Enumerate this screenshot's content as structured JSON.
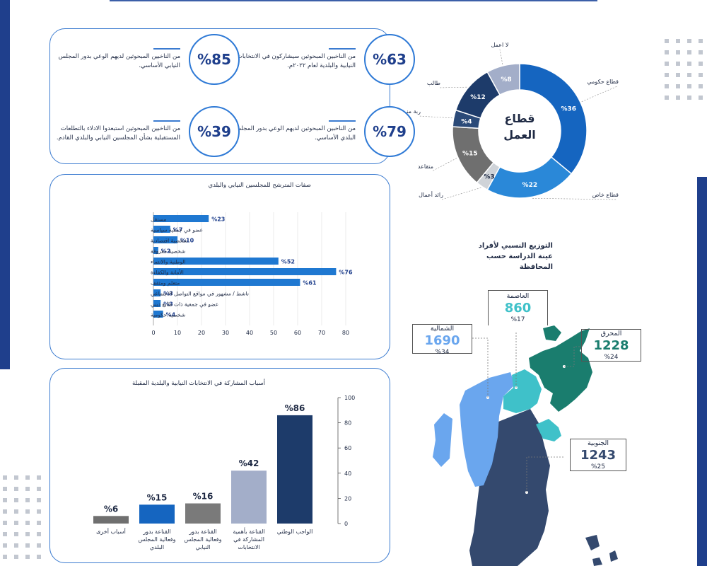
{
  "stats": [
    {
      "value": "%63",
      "text": "من الناخبين المبحوثين سيشاركون في الانتخابات النيابية والبلدية لعام ٢٠٢٢م."
    },
    {
      "value": "%85",
      "text": "من الناخبين المبحوثين لديهم الوعي بدور المجلس النيابي الأساسي."
    },
    {
      "value": "%79",
      "text": "من الناخبين المبحوثين لديهم الوعي بدور المجلس البلدي الأساسي."
    },
    {
      "value": "%39",
      "text": "من الناخبين المبحوثين استبعدوا الادلاء بالتطلعات المستقبلية بشأن المجلسين النيابي والبلدي القادم."
    }
  ],
  "donut": {
    "center_title": "قطاع العمل",
    "colors": {
      "gov": "#1565c0",
      "private": "#2a88d8",
      "business": "#cfd3d8",
      "retired": "#6f6f6f",
      "housewife": "#2b4a78",
      "student": "#1d3b6a",
      "unemployed": "#a3aec9"
    }
  },
  "map": {
    "title": "التوزيع النسبي لأفراد عينة الدراسة حسب المحافظة",
    "regions": [
      {
        "key": "capital",
        "name": "العاصمة",
        "value": "860",
        "pct": "%17",
        "color": "#3fc1c9"
      },
      {
        "key": "muharraq",
        "name": "المحرق",
        "value": "1228",
        "pct": "%24",
        "color": "#1a7d6e"
      },
      {
        "key": "northern",
        "name": "الشمالية",
        "value": "1690",
        "pct": "%34",
        "color": "#6aa6ee"
      },
      {
        "key": "southern",
        "name": "الجنوبية",
        "value": "1243",
        "pct": "%25",
        "color": "#34496e"
      }
    ]
  },
  "chart_data": [
    {
      "type": "pie",
      "title": "قطاع العمل",
      "categories": [
        "قطاع حكومي",
        "قطاع خاص",
        "رائد أعمال",
        "متقاعد",
        "ربة منزل",
        "طالب",
        "لا أعمل"
      ],
      "values": [
        36,
        22,
        3,
        15,
        4,
        12,
        8
      ],
      "value_labels": [
        "%36",
        "%22",
        "%3",
        "%15",
        "%4",
        "%12",
        "%8"
      ]
    },
    {
      "type": "bar",
      "orientation": "horizontal",
      "title": "صفات المترشح للمجلسين النيابي والبلدي",
      "categories": [
        "مستقل",
        "عضو في جمعية سياسية",
        "شخصية اقتصادية",
        "شخصية معروفة",
        "الوطنية والانتماء",
        "الأمانة والكفاءة",
        "متعلم ومثقف",
        "ناشط / مشهور في مواقع التواصل الاجتماعي",
        "عضو في جمعية ذات طابع ديني",
        "شخصية حكومية"
      ],
      "values": [
        23,
        7,
        10,
        2,
        52,
        76,
        61,
        3,
        3,
        4
      ],
      "value_labels": [
        "%23",
        "%7",
        "%10",
        "%2",
        "%52",
        "%76",
        "%61",
        "%3",
        "%3",
        "%4"
      ],
      "xlim": [
        0,
        80
      ],
      "xticks": [
        "0",
        "10",
        "20",
        "30",
        "40",
        "50",
        "60",
        "70",
        "80"
      ],
      "color": "#1f78d1"
    },
    {
      "type": "bar",
      "title": "أسباب المشاركة في الانتخابات النيابية والبلدية المقبلة",
      "categories": [
        "أسباب أخرى",
        "القناعة بدور وفعالية المجلس البلدي",
        "القناعة بدور وفعالية المجلس النيابي",
        "القناعة بأهمية المشاركة في الانتخابات",
        "الواجب الوطني"
      ],
      "values": [
        6,
        15,
        16,
        42,
        86
      ],
      "value_labels": [
        "%6",
        "%15",
        "%16",
        "%42",
        "%86"
      ],
      "ylim": [
        0,
        100
      ],
      "yticks": [
        "0",
        "20",
        "40",
        "60",
        "80",
        "100"
      ],
      "colors": [
        "#6f6f6f",
        "#1565c0",
        "#7a7a7a",
        "#a3aec9",
        "#1d3b6a"
      ]
    }
  ]
}
